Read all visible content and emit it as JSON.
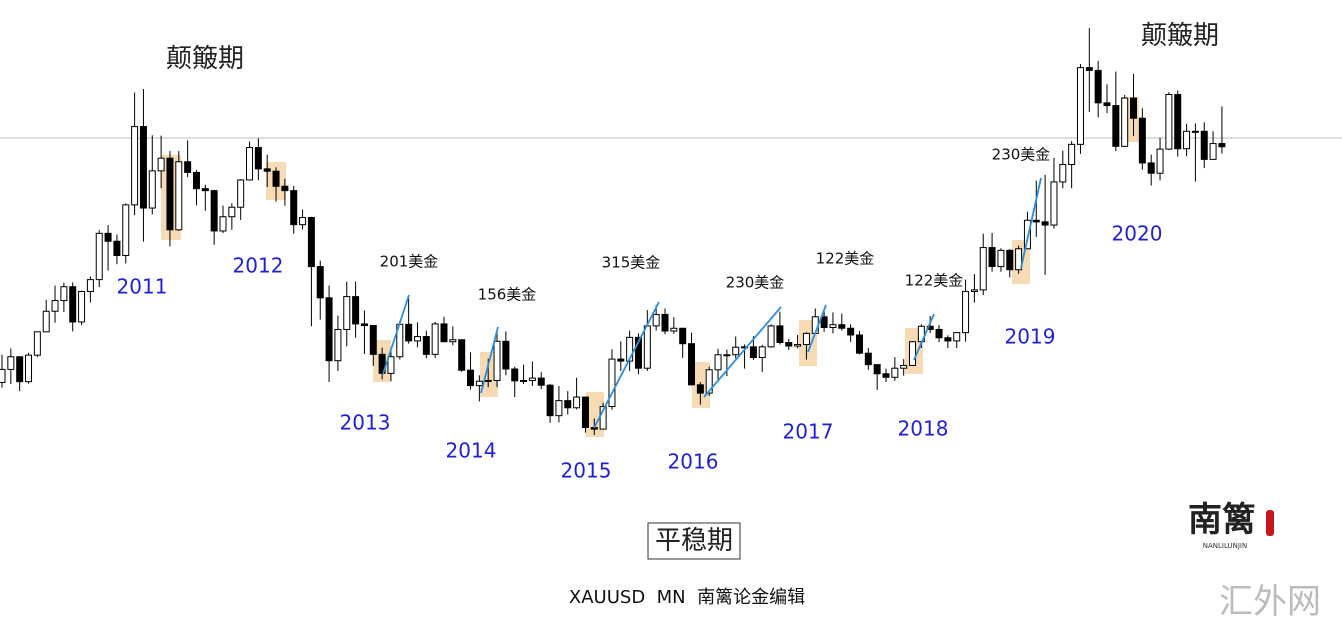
{
  "chart_data": {
    "type": "candlestick",
    "ylim": [
      548,
      2146
    ],
    "up_color": "#ffffff",
    "down_color": "#000000",
    "edge_color": "#000000",
    "open": [
      1179,
      1212,
      1244,
      1181,
      1248,
      1307,
      1359,
      1386,
      1421,
      1332,
      1409,
      1439,
      1556,
      1536,
      1500,
      1628,
      1826,
      1620,
      1714,
      1746,
      1565,
      1737,
      1710,
      1669,
      1664,
      1562,
      1598,
      1622,
      1691,
      1773,
      1719,
      1713,
      1675,
      1664,
      1578,
      1596,
      1472,
      1393,
      1234,
      1313,
      1396,
      1327,
      1323,
      1250,
      1202,
      1244,
      1326,
      1284,
      1295,
      1250,
      1327,
      1282,
      1287,
      1210,
      1171,
      1182,
      1184,
      1283,
      1213,
      1183,
      1184,
      1190,
      1172,
      1095,
      1133,
      1115,
      1142,
      1065,
      1061,
      1118,
      1238,
      1233,
      1293,
      1215,
      1322,
      1351,
      1309,
      1316,
      1277,
      1173,
      1152,
      1211,
      1249,
      1249,
      1268,
      1269,
      1242,
      1269,
      1322,
      1280,
      1271,
      1275,
      1303,
      1345,
      1318,
      1325,
      1316,
      1299,
      1253,
      1224,
      1201,
      1192,
      1215,
      1222,
      1282,
      1321,
      1313,
      1292,
      1284,
      1305,
      1409,
      1413,
      1520,
      1472,
      1513,
      1464,
      1517,
      1589,
      1585,
      1577,
      1686,
      1730,
      1781,
      1975,
      1968,
      1886,
      1879,
      1776,
      1898,
      1847,
      1734,
      1708,
      1769,
      1907,
      1770,
      1814,
      1814,
      1743,
      1783
    ],
    "high": [
      1249,
      1265,
      1245,
      1254,
      1308,
      1388,
      1424,
      1431,
      1432,
      1411,
      1447,
      1564,
      1577,
      1553,
      1632,
      1912,
      1921,
      1804,
      1803,
      1764,
      1764,
      1791,
      1716,
      1679,
      1666,
      1626,
      1632,
      1693,
      1788,
      1796,
      1755,
      1723,
      1694,
      1676,
      1616,
      1598,
      1487,
      1424,
      1348,
      1434,
      1434,
      1361,
      1324,
      1267,
      1268,
      1332,
      1392,
      1331,
      1310,
      1332,
      1345,
      1321,
      1288,
      1255,
      1197,
      1239,
      1307,
      1308,
      1219,
      1224,
      1232,
      1205,
      1175,
      1170,
      1157,
      1191,
      1143,
      1088,
      1128,
      1263,
      1283,
      1310,
      1303,
      1362,
      1375,
      1366,
      1344,
      1317,
      1305,
      1180,
      1219,
      1264,
      1262,
      1295,
      1275,
      1296,
      1274,
      1326,
      1358,
      1289,
      1299,
      1306,
      1366,
      1361,
      1356,
      1353,
      1326,
      1309,
      1266,
      1215,
      1214,
      1243,
      1238,
      1284,
      1326,
      1347,
      1324,
      1298,
      1306,
      1439,
      1453,
      1555,
      1557,
      1518,
      1516,
      1525,
      1611,
      1689,
      1704,
      1747,
      1765,
      1789,
      1984,
      2075,
      1992,
      1933,
      1965,
      1906,
      1959,
      1872,
      1755,
      1798,
      1913,
      1917,
      1833,
      1834,
      1837,
      1814,
      1877
    ],
    "low": [
      1166,
      1175,
      1157,
      1176,
      1243,
      1316,
      1330,
      1357,
      1308,
      1324,
      1381,
      1420,
      1462,
      1478,
      1480,
      1602,
      1535,
      1604,
      1670,
      1523,
      1562,
      1698,
      1627,
      1613,
      1527,
      1557,
      1565,
      1590,
      1691,
      1690,
      1673,
      1636,
      1626,
      1555,
      1566,
      1321,
      1338,
      1180,
      1208,
      1270,
      1292,
      1251,
      1221,
      1187,
      1182,
      1237,
      1277,
      1268,
      1240,
      1241,
      1282,
      1273,
      1206,
      1161,
      1131,
      1167,
      1167,
      1197,
      1142,
      1175,
      1170,
      1162,
      1077,
      1078,
      1098,
      1111,
      1052,
      1046,
      1061,
      1110,
      1208,
      1208,
      1200,
      1208,
      1310,
      1301,
      1302,
      1241,
      1171,
      1123,
      1145,
      1181,
      1195,
      1240,
      1214,
      1236,
      1205,
      1267,
      1275,
      1261,
      1265,
      1237,
      1303,
      1307,
      1303,
      1310,
      1281,
      1250,
      1211,
      1160,
      1180,
      1183,
      1196,
      1221,
      1266,
      1304,
      1281,
      1266,
      1266,
      1282,
      1381,
      1400,
      1459,
      1459,
      1445,
      1454,
      1516,
      1547,
      1451,
      1568,
      1670,
      1670,
      1757,
      1863,
      1849,
      1860,
      1764,
      1775,
      1802,
      1717,
      1677,
      1690,
      1767,
      1750,
      1751,
      1687,
      1721,
      1746,
      1758
    ],
    "close": [
      1212,
      1244,
      1181,
      1248,
      1307,
      1359,
      1386,
      1421,
      1332,
      1409,
      1439,
      1556,
      1536,
      1500,
      1628,
      1826,
      1620,
      1714,
      1746,
      1565,
      1737,
      1710,
      1669,
      1664,
      1562,
      1598,
      1622,
      1691,
      1773,
      1719,
      1713,
      1675,
      1664,
      1578,
      1596,
      1472,
      1393,
      1234,
      1313,
      1396,
      1327,
      1323,
      1250,
      1202,
      1244,
      1326,
      1284,
      1295,
      1250,
      1327,
      1282,
      1287,
      1210,
      1171,
      1182,
      1184,
      1283,
      1213,
      1183,
      1184,
      1190,
      1172,
      1095,
      1133,
      1115,
      1142,
      1065,
      1061,
      1118,
      1238,
      1233,
      1293,
      1215,
      1322,
      1351,
      1309,
      1316,
      1277,
      1173,
      1152,
      1211,
      1249,
      1249,
      1268,
      1269,
      1242,
      1269,
      1322,
      1280,
      1271,
      1275,
      1303,
      1345,
      1318,
      1325,
      1316,
      1299,
      1253,
      1224,
      1201,
      1192,
      1215,
      1222,
      1282,
      1321,
      1313,
      1292,
      1284,
      1305,
      1409,
      1413,
      1520,
      1472,
      1513,
      1464,
      1517,
      1589,
      1585,
      1577,
      1686,
      1730,
      1781,
      1975,
      1968,
      1886,
      1879,
      1776,
      1898,
      1847,
      1734,
      1708,
      1769,
      1907,
      1770,
      1814,
      1814,
      1743,
      1783,
      1775
    ],
    "phase_labels": [
      "颠簸期",
      "颠簸期",
      "平稳期"
    ],
    "year_labels": [
      "2011",
      "2012",
      "2013",
      "2014",
      "2015",
      "2016",
      "2017",
      "2018",
      "2019",
      "2020"
    ],
    "move_labels": [
      "201美金",
      "156美金",
      "315美金",
      "230美金",
      "122美金",
      "122美金",
      "230美金"
    ],
    "caption": "XAUUSD  MN  南篱论金编辑",
    "logo": "南篱",
    "logo_sub": "NANLILUNJIN",
    "watermark": "汇外网"
  }
}
